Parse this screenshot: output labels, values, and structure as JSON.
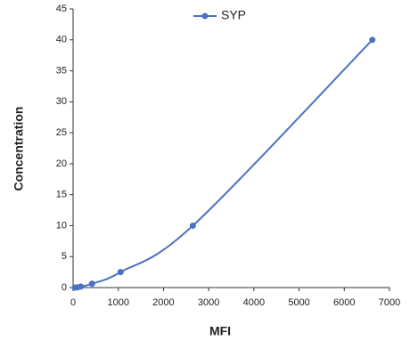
{
  "chart_data": {
    "type": "line",
    "x_label": "MFI",
    "y_label": "Concentration",
    "x": [
      40,
      100,
      170,
      420,
      1050,
      2650,
      6620
    ],
    "series": [
      {
        "name": "SYP",
        "color": "#4a72c0",
        "values": [
          0,
          0.039,
          0.156,
          0.625,
          2.5,
          10,
          40
        ]
      }
    ],
    "xlim": [
      0,
      7000
    ],
    "xticks": [
      0,
      1000,
      2000,
      3000,
      4000,
      5000,
      6000,
      7000
    ],
    "ylim": [
      0,
      45
    ],
    "yticks": [
      0,
      5,
      10,
      15,
      20,
      25,
      30,
      35,
      40,
      45
    ],
    "grid": false,
    "legend": "top",
    "smooth": true
  }
}
